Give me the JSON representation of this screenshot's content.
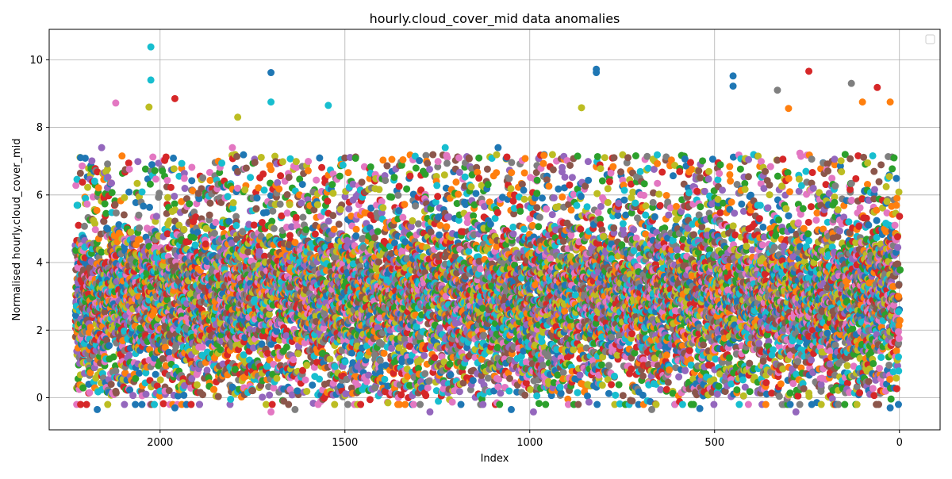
{
  "chart_data": {
    "type": "scatter",
    "title": "hourly.cloud_cover_mid data anomalies",
    "xlabel": "Index",
    "ylabel": "Normalised hourly.cloud_cover_mid",
    "xlim": [
      2300,
      -110
    ],
    "ylim": [
      -0.95,
      10.9
    ],
    "x_inverted": true,
    "x_ticks": [
      2000,
      1500,
      1000,
      500,
      0
    ],
    "y_ticks": [
      0,
      2,
      4,
      6,
      8,
      10
    ],
    "grid": true,
    "legend": "top-right",
    "legend_entries": [],
    "point_count_estimate": 2230,
    "colors": [
      "#1f77b4",
      "#ff7f0e",
      "#2ca02c",
      "#d62728",
      "#9467bd",
      "#8c564b",
      "#e377c2",
      "#7f7f7f",
      "#bcbd22",
      "#17becf"
    ],
    "outliers": [
      {
        "x": 2025,
        "y": 10.38,
        "color": "#17becf"
      },
      {
        "x": 2025,
        "y": 9.4,
        "color": "#17becf"
      },
      {
        "x": 1700,
        "y": 9.62,
        "color": "#1f77b4"
      },
      {
        "x": 820,
        "y": 9.72,
        "color": "#1f77b4"
      },
      {
        "x": 820,
        "y": 9.62,
        "color": "#1f77b4"
      },
      {
        "x": 450,
        "y": 9.52,
        "color": "#1f77b4"
      },
      {
        "x": 450,
        "y": 9.22,
        "color": "#1f77b4"
      },
      {
        "x": 330,
        "y": 9.1,
        "color": "#7f7f7f"
      },
      {
        "x": 245,
        "y": 9.66,
        "color": "#d62728"
      },
      {
        "x": 130,
        "y": 9.3,
        "color": "#7f7f7f"
      },
      {
        "x": 60,
        "y": 9.18,
        "color": "#d62728"
      },
      {
        "x": 1960,
        "y": 8.85,
        "color": "#d62728"
      },
      {
        "x": 2120,
        "y": 8.72,
        "color": "#e377c2"
      },
      {
        "x": 1700,
        "y": 8.75,
        "color": "#17becf"
      },
      {
        "x": 1545,
        "y": 8.65,
        "color": "#17becf"
      },
      {
        "x": 860,
        "y": 8.58,
        "color": "#bcbd22"
      },
      {
        "x": 300,
        "y": 8.56,
        "color": "#ff7f0e"
      },
      {
        "x": 100,
        "y": 8.75,
        "color": "#ff7f0e"
      },
      {
        "x": 25,
        "y": 8.75,
        "color": "#ff7f0e"
      },
      {
        "x": 2030,
        "y": 8.6,
        "color": "#bcbd22"
      },
      {
        "x": 1790,
        "y": 8.3,
        "color": "#bcbd22"
      },
      {
        "x": 2170,
        "y": -0.35,
        "color": "#1f77b4"
      },
      {
        "x": 1960,
        "y": -0.3,
        "color": "#1f77b4"
      },
      {
        "x": 1700,
        "y": -0.42,
        "color": "#e377c2"
      },
      {
        "x": 1635,
        "y": -0.35,
        "color": "#7f7f7f"
      },
      {
        "x": 1270,
        "y": -0.42,
        "color": "#9467bd"
      },
      {
        "x": 1050,
        "y": -0.35,
        "color": "#1f77b4"
      },
      {
        "x": 990,
        "y": -0.42,
        "color": "#9467bd"
      },
      {
        "x": 670,
        "y": -0.35,
        "color": "#7f7f7f"
      },
      {
        "x": 540,
        "y": -0.32,
        "color": "#1f77b4"
      },
      {
        "x": 280,
        "y": -0.42,
        "color": "#9467bd"
      },
      {
        "x": 25,
        "y": -0.3,
        "color": "#1f77b4"
      }
    ]
  }
}
